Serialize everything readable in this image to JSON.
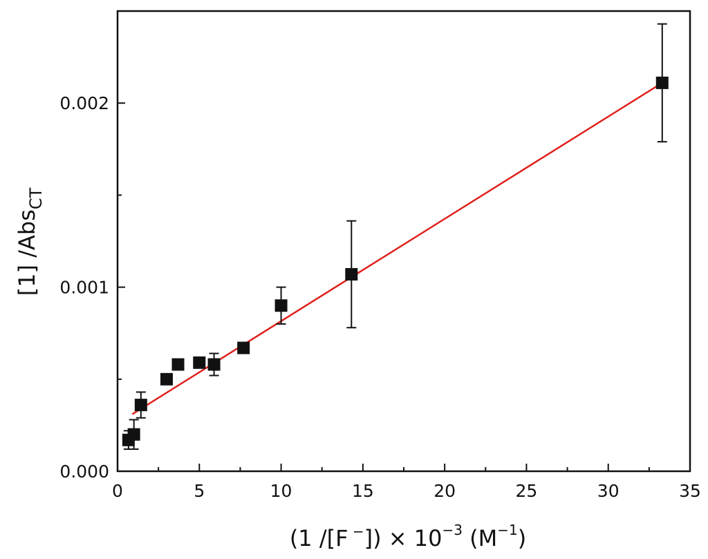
{
  "chart_data": {
    "type": "scatter",
    "title": "",
    "xlabel": {
      "main": "(1 /[F",
      "minus": " −",
      "mid": "]) × 10",
      "exp": "−3",
      "unit_open": " (M",
      "unit_exp": "−1",
      "unit_close": ")"
    },
    "ylabel": {
      "main": "[1] /Abs",
      "sub": "CT"
    },
    "xlim": [
      0,
      35
    ],
    "ylim": [
      0,
      0.0025
    ],
    "x_ticks": [
      {
        "value": 0,
        "label": "0"
      },
      {
        "value": 5,
        "label": "5"
      },
      {
        "value": 10,
        "label": "10"
      },
      {
        "value": 15,
        "label": "15"
      },
      {
        "value": 20,
        "label": "20"
      },
      {
        "value": 25,
        "label": "25"
      },
      {
        "value": 30,
        "label": "30"
      },
      {
        "value": 35,
        "label": "35"
      }
    ],
    "x_minor_step": 2.5,
    "y_ticks": [
      {
        "value": 0,
        "label": "0.000"
      },
      {
        "value": 0.001,
        "label": "0.001"
      },
      {
        "value": 0.002,
        "label": "0.002"
      }
    ],
    "y_minor_step": 0.0005,
    "grid": false,
    "series": [
      {
        "marker": "square",
        "color": "#111111",
        "points": [
          {
            "x": 0.67,
            "y": 0.00017,
            "err": 5e-05
          },
          {
            "x": 1.0,
            "y": 0.0002,
            "err": 8e-05
          },
          {
            "x": 1.43,
            "y": 0.00036,
            "err": 7e-05
          },
          {
            "x": 3.0,
            "y": 0.0005,
            "err": 1e-05
          },
          {
            "x": 3.7,
            "y": 0.00058,
            "err": 1e-05
          },
          {
            "x": 5.0,
            "y": 0.00059,
            "err": 2e-05
          },
          {
            "x": 5.9,
            "y": 0.00058,
            "err": 6e-05
          },
          {
            "x": 7.7,
            "y": 0.00067,
            "err": 3e-05
          },
          {
            "x": 10.0,
            "y": 0.0009,
            "err": 0.0001
          },
          {
            "x": 14.3,
            "y": 0.00107,
            "err": 0.00029
          },
          {
            "x": 33.3,
            "y": 0.00211,
            "err": 0.00032
          }
        ]
      }
    ],
    "fit_line": {
      "color": "#e0201b",
      "x": [
        0.9,
        33.3
      ],
      "y": [
        0.00031,
        0.00211
      ]
    }
  }
}
